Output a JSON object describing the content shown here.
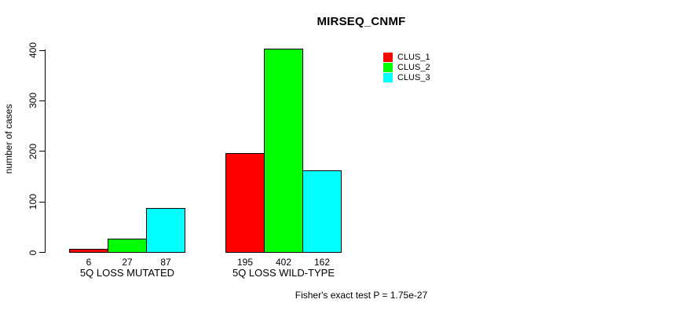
{
  "figure": {
    "background": "#ffffff",
    "axis_color": "#000000",
    "text_color": "#000000"
  },
  "chart_data": {
    "type": "bar",
    "title": "MIRSEQ_CNMF",
    "xlabel": "",
    "ylabel": "number of cases",
    "ylim": [
      0,
      400
    ],
    "yticks": [
      0,
      100,
      200,
      300,
      400
    ],
    "grid": false,
    "bar_borders": true,
    "legend_position": "top-right",
    "categories": [
      "5Q LOSS MUTATED",
      "5Q LOSS WILD-TYPE"
    ],
    "series": [
      {
        "name": "CLUS_1",
        "color": "#ff0000",
        "values": [
          6,
          195
        ]
      },
      {
        "name": "CLUS_2",
        "color": "#00ff00",
        "values": [
          27,
          402
        ]
      },
      {
        "name": "CLUS_3",
        "color": "#00ffff",
        "values": [
          87,
          162
        ]
      }
    ],
    "value_labels": [
      [
        6,
        27,
        87
      ],
      [
        195,
        402,
        162
      ]
    ],
    "annotation": "Fisher's exact test P = 1.75e-27"
  }
}
